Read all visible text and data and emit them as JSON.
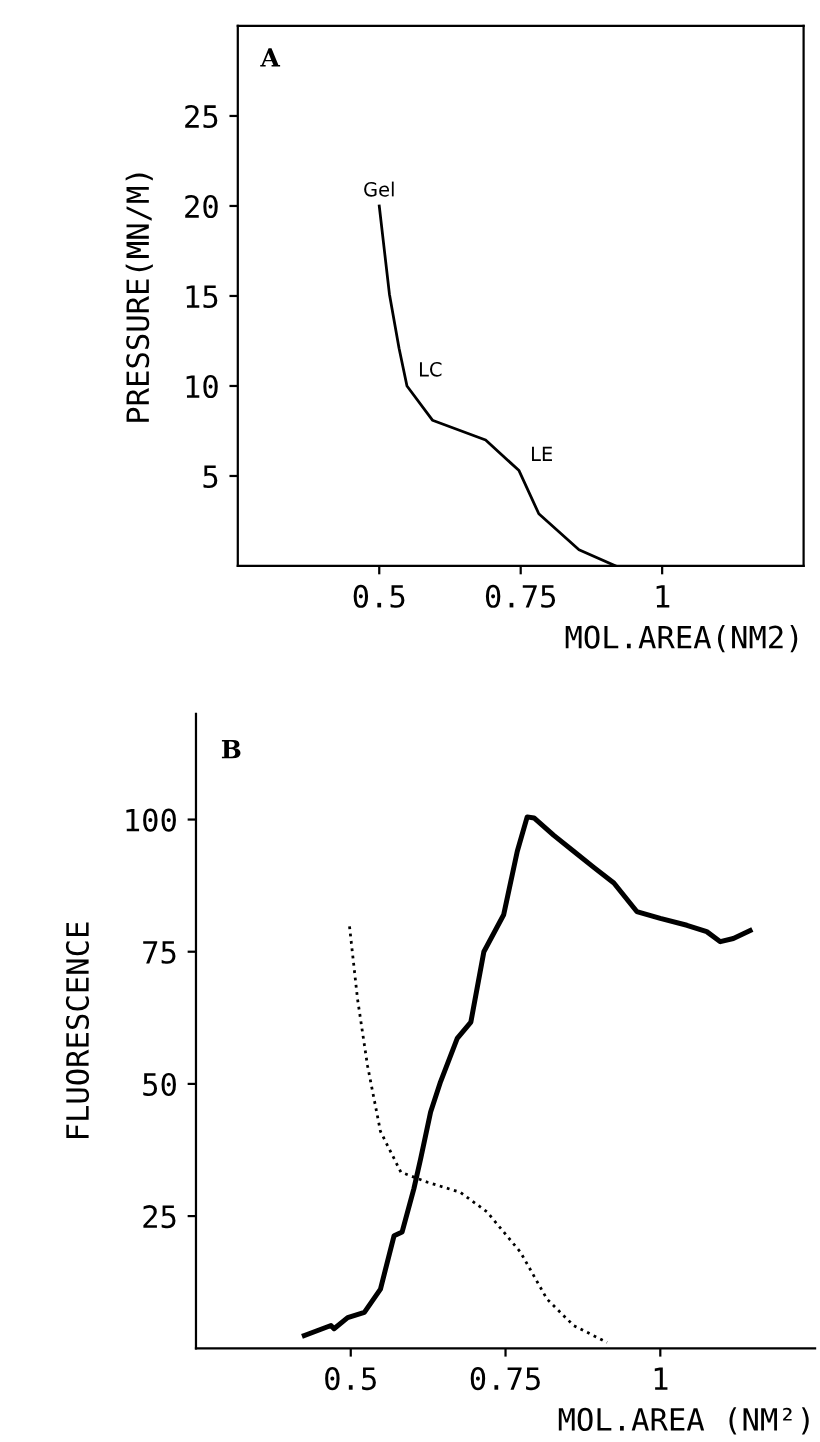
{
  "chart_data": [
    {
      "type": "line",
      "title": "A",
      "xlabel": "MOL.AREA(NM2)",
      "ylabel": "PRESSURE(MN/M)",
      "xlim": [
        0.25,
        1.25
      ],
      "ylim": [
        0,
        30
      ],
      "xticks": [
        0.5,
        0.75,
        1
      ],
      "yticks": [
        5,
        10,
        15,
        20,
        25
      ],
      "grid": false,
      "legend": false,
      "annotations": [
        {
          "text": "Gel",
          "x": 0.5,
          "y": 20
        },
        {
          "text": "LC",
          "x": 0.549,
          "y": 10
        },
        {
          "text": "LE",
          "x": 0.747,
          "y": 5.3
        }
      ],
      "series": [
        {
          "color": "#000000",
          "line_style": "solid",
          "x": [
            0.5,
            0.518,
            0.535,
            0.549,
            0.594,
            0.688,
            0.747,
            0.782,
            0.853,
            0.918
          ],
          "values": [
            20,
            15.1,
            12.1,
            10,
            8.1,
            7.0,
            5.3,
            2.9,
            0.9,
            0
          ]
        }
      ]
    },
    {
      "type": "line",
      "title": "B",
      "xlabel": "MOL.AREA (NM²)",
      "ylabel": "FLUORESCENCE",
      "xlim": [
        0.25,
        1.25
      ],
      "ylim": [
        0,
        120
      ],
      "xticks": [
        0.5,
        0.75,
        1
      ],
      "yticks": [
        25,
        50,
        75,
        100
      ],
      "grid": false,
      "legend": false,
      "series": [
        {
          "color": "#000000",
          "line_style": "solid",
          "x": [
            0.425,
            0.468,
            0.473,
            0.495,
            0.522,
            0.548,
            0.57,
            0.583,
            0.602,
            0.613,
            0.629,
            0.645,
            0.672,
            0.694,
            0.715,
            0.747,
            0.769,
            0.785,
            0.796,
            0.828,
            0.86,
            0.892,
            0.925,
            0.962,
            1.0,
            1.043,
            1.075,
            1.097,
            1.118,
            1.145
          ],
          "values": [
            2.4,
            4.3,
            3.7,
            5.8,
            6.8,
            11.2,
            21.3,
            22,
            30.2,
            35.9,
            44.7,
            50.4,
            58.6,
            61.7,
            75,
            82,
            94,
            100.5,
            100.3,
            97,
            94,
            91,
            88,
            82.6,
            81.3,
            80,
            78.8,
            76.9,
            77.5,
            79
          ]
        },
        {
          "color": "#000000",
          "line_style": "dotted",
          "x": [
            0.498,
            0.511,
            0.527,
            0.548,
            0.581,
            0.624,
            0.677,
            0.72,
            0.774,
            0.817,
            0.86,
            0.914
          ],
          "values": [
            79.8,
            66,
            53.5,
            41,
            33.3,
            31.4,
            29.5,
            25.8,
            18.2,
            9.3,
            4.3,
            1.1
          ]
        }
      ]
    }
  ]
}
